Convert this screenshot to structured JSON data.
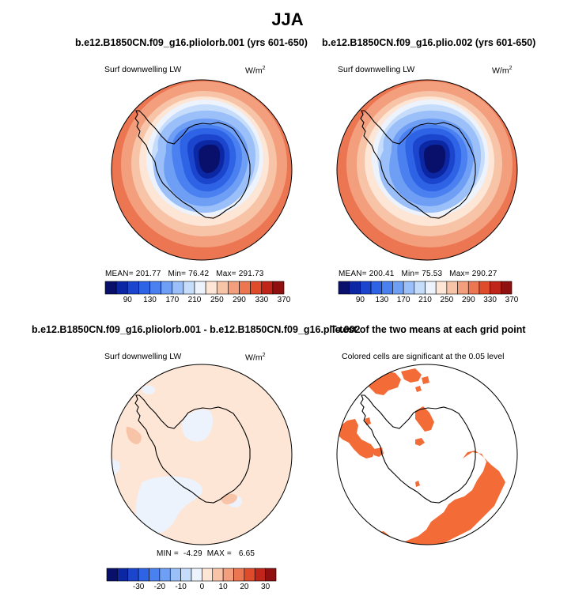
{
  "figure": {
    "title": "JJA"
  },
  "chart_data": [
    {
      "type": "heatmap",
      "projection": "south-polar-stereographic",
      "title": "b.e12.B1850CN.f09_g16.pliolorb.001 (yrs 601-650)",
      "variable": "Surf downwelling LW",
      "units_base": "W/m",
      "units_exp": "2",
      "stats": {
        "mean_label": "MEAN=",
        "mean": "201.77",
        "min_label": "Min=",
        "min": "76.42",
        "max_label": "Max=",
        "max": "291.73"
      },
      "colorbar": {
        "levels": [
          70,
          90,
          110,
          130,
          150,
          170,
          190,
          210,
          230,
          250,
          270,
          290,
          310,
          330,
          350,
          370
        ],
        "tick_labels": [
          "90",
          "130",
          "170",
          "210",
          "250",
          "290",
          "330",
          "370"
        ],
        "colors": [
          "#08106b",
          "#0c27a3",
          "#1a45cc",
          "#2e63e6",
          "#4a80f0",
          "#6f9ff5",
          "#9bbff8",
          "#c6dcfb",
          "#ecf3fd",
          "#fde6d6",
          "#f8c4a8",
          "#f39e7c",
          "#ec7652",
          "#df4c2c",
          "#c0251a",
          "#901010"
        ]
      }
    },
    {
      "type": "heatmap",
      "projection": "south-polar-stereographic",
      "title": "b.e12.B1850CN.f09_g16.plio.002 (yrs 601-650)",
      "variable": "Surf downwelling LW",
      "units_base": "W/m",
      "units_exp": "2",
      "stats": {
        "mean_label": "MEAN=",
        "mean": "200.41",
        "min_label": "Min=",
        "min": "75.53",
        "max_label": "Max=",
        "max": "290.27"
      },
      "colorbar": {
        "levels": [
          70,
          90,
          110,
          130,
          150,
          170,
          190,
          210,
          230,
          250,
          270,
          290,
          310,
          330,
          350,
          370
        ],
        "tick_labels": [
          "90",
          "130",
          "170",
          "210",
          "250",
          "290",
          "330",
          "370"
        ],
        "colors": [
          "#08106b",
          "#0c27a3",
          "#1a45cc",
          "#2e63e6",
          "#4a80f0",
          "#6f9ff5",
          "#9bbff8",
          "#c6dcfb",
          "#ecf3fd",
          "#fde6d6",
          "#f8c4a8",
          "#f39e7c",
          "#ec7652",
          "#df4c2c",
          "#c0251a",
          "#901010"
        ]
      }
    },
    {
      "type": "heatmap",
      "projection": "south-polar-stereographic",
      "title": "b.e12.B1850CN.f09_g16.pliolorb.001 - b.e12.B1850CN.f09_g16.plio.002",
      "variable": "Surf downwelling LW",
      "units_base": "W/m",
      "units_exp": "2",
      "stats": {
        "min_label": "MIN =",
        "min": "-4.29",
        "max_label": "MAX =",
        "max": "6.65"
      },
      "colorbar": {
        "levels": [
          -40,
          -35,
          -30,
          -25,
          -20,
          -15,
          -10,
          -5,
          0,
          5,
          10,
          15,
          20,
          25,
          30,
          35
        ],
        "tick_labels": [
          "-30",
          "-20",
          "-10",
          "0",
          "10",
          "20",
          "30"
        ],
        "colors": [
          "#08106b",
          "#0c27a3",
          "#1a45cc",
          "#2e63e6",
          "#4a80f0",
          "#6f9ff5",
          "#9bbff8",
          "#c6dcfb",
          "#ecf3fd",
          "#fde6d6",
          "#f8c4a8",
          "#f39e7c",
          "#ec7652",
          "#df4c2c",
          "#c0251a",
          "#901010"
        ]
      }
    },
    {
      "type": "heatmap",
      "projection": "south-polar-stereographic",
      "title": "T-test of the two means at each grid point",
      "subtitle": "Colored cells are significant at the 0.05 level",
      "significance_color": "#f36b36"
    }
  ]
}
